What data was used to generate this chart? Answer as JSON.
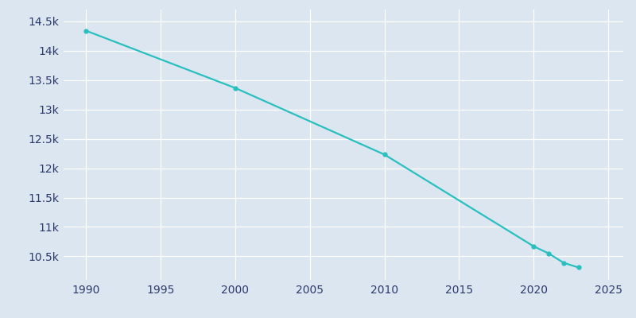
{
  "years": [
    1990,
    2000,
    2010,
    2020,
    2021,
    2022,
    2023
  ],
  "population": [
    14340,
    13365,
    12232,
    10670,
    10550,
    10390,
    10310
  ],
  "line_color": "#2abfbf",
  "marker_color": "#2abfbf",
  "bg_color": "#dce6f0",
  "grid_color": "#c5d3e8",
  "text_color": "#2b3a6b",
  "xlim": [
    1988.5,
    2026
  ],
  "ylim": [
    10100,
    14700
  ],
  "xticks": [
    1990,
    1995,
    2000,
    2005,
    2010,
    2015,
    2020,
    2025
  ],
  "ytick_values": [
    10500,
    11000,
    11500,
    12000,
    12500,
    13000,
    13500,
    14000,
    14500
  ],
  "ytick_labels": [
    "10.5k",
    "11k",
    "11.5k",
    "12k",
    "12.5k",
    "13k",
    "13.5k",
    "14k",
    "14.5k"
  ]
}
